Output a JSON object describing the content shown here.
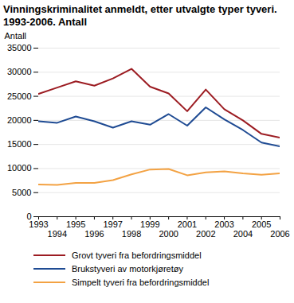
{
  "chart_data": {
    "type": "line",
    "title": "Vinningskriminalitet anmeldt, etter utvalgte typer tyveri. 1993-2006. Antall",
    "y_label": "Antall",
    "x": [
      1993,
      1994,
      1995,
      1996,
      1997,
      1998,
      1999,
      2000,
      2001,
      2002,
      2003,
      2004,
      2005,
      2006
    ],
    "xlim": [
      1993,
      2006
    ],
    "xticks": [
      1993,
      1994,
      1995,
      1996,
      1997,
      1998,
      1999,
      2000,
      2001,
      2002,
      2003,
      2004,
      2005,
      2006
    ],
    "ylim": [
      0,
      35000
    ],
    "yticks": [
      0,
      5000,
      10000,
      15000,
      20000,
      25000,
      30000,
      35000
    ],
    "grid": true,
    "legend": "bottom",
    "series": [
      {
        "name": "Grovt tyveri fra befordringsmiddel",
        "color": "#9c1c22",
        "values": [
          25500,
          26800,
          28100,
          27200,
          28700,
          30700,
          27000,
          25600,
          21900,
          26400,
          22300,
          20000,
          17200,
          16400
        ]
      },
      {
        "name": "Brukstyveri av motorkjøretøy",
        "color": "#1f4b93",
        "values": [
          19800,
          19500,
          20800,
          19800,
          18500,
          19800,
          19100,
          21300,
          18900,
          22700,
          20200,
          18000,
          15400,
          14600
        ]
      },
      {
        "name": "Simpelt tyveri fra befordringsmiddel",
        "color": "#f3a243",
        "values": [
          6700,
          6600,
          7000,
          7000,
          7600,
          8800,
          9800,
          9900,
          8600,
          9200,
          9400,
          9000,
          8700,
          9000
        ]
      }
    ]
  }
}
